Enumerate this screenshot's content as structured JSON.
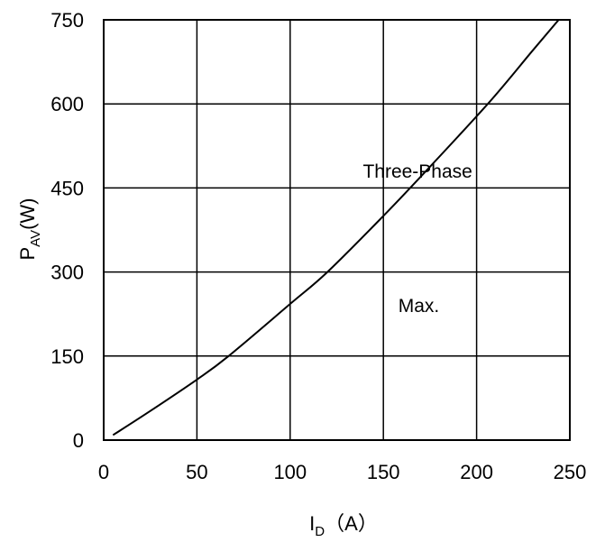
{
  "chart_data": {
    "type": "line",
    "title": "",
    "xlabel": {
      "main": "I",
      "sub": "D",
      "unit": "（A）"
    },
    "ylabel": {
      "main": "P",
      "sub": "AV",
      "unit": "(W)"
    },
    "xlim": [
      0,
      250
    ],
    "ylim": [
      0,
      750
    ],
    "x_ticks": [
      0,
      50,
      100,
      150,
      200,
      250
    ],
    "y_ticks": [
      0,
      150,
      300,
      450,
      600,
      750
    ],
    "grid": true,
    "annotations": [
      {
        "text": "Three-Phase",
        "x": 139,
        "y": 480
      },
      {
        "text": "Max.",
        "x": 158,
        "y": 240
      }
    ],
    "series": [
      {
        "x": [
          5,
          25,
          50,
          67,
          100,
          120,
          150,
          170,
          206,
          230,
          244
        ],
        "y": [
          9,
          52,
          108,
          150,
          243,
          300,
          400,
          470,
          600,
          695,
          750
        ]
      }
    ],
    "colors": {
      "line": "#000000",
      "grid": "#000000",
      "background": "#ffffff"
    }
  }
}
